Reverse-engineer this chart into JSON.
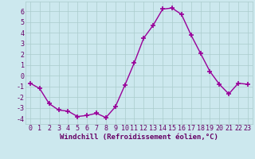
{
  "x": [
    0,
    1,
    2,
    3,
    4,
    5,
    6,
    7,
    8,
    9,
    10,
    11,
    12,
    13,
    14,
    15,
    16,
    17,
    18,
    19,
    20,
    21,
    22,
    23
  ],
  "y": [
    -0.7,
    -1.2,
    -2.6,
    -3.2,
    -3.3,
    -3.8,
    -3.7,
    -3.5,
    -3.9,
    -2.9,
    -0.9,
    1.2,
    3.5,
    4.7,
    6.2,
    6.3,
    5.7,
    3.8,
    2.1,
    0.4,
    -0.8,
    -1.7,
    -0.7,
    -0.8
  ],
  "line_color": "#990099",
  "marker": "+",
  "marker_size": 4,
  "marker_lw": 1.2,
  "bg_color": "#cce8ee",
  "grid_color": "#aacccc",
  "xlabel": "Windchill (Refroidissement éolien,°C)",
  "xlim": [
    -0.5,
    23.5
  ],
  "ylim": [
    -4.5,
    6.9
  ],
  "yticks": [
    -4,
    -3,
    -2,
    -1,
    0,
    1,
    2,
    3,
    4,
    5,
    6
  ],
  "xticks": [
    0,
    1,
    2,
    3,
    4,
    5,
    6,
    7,
    8,
    9,
    10,
    11,
    12,
    13,
    14,
    15,
    16,
    17,
    18,
    19,
    20,
    21,
    22,
    23
  ],
  "tick_color": "#660066",
  "label_color": "#660066",
  "xlabel_fontsize": 6.5,
  "tick_fontsize": 6.0,
  "linewidth": 1.0
}
